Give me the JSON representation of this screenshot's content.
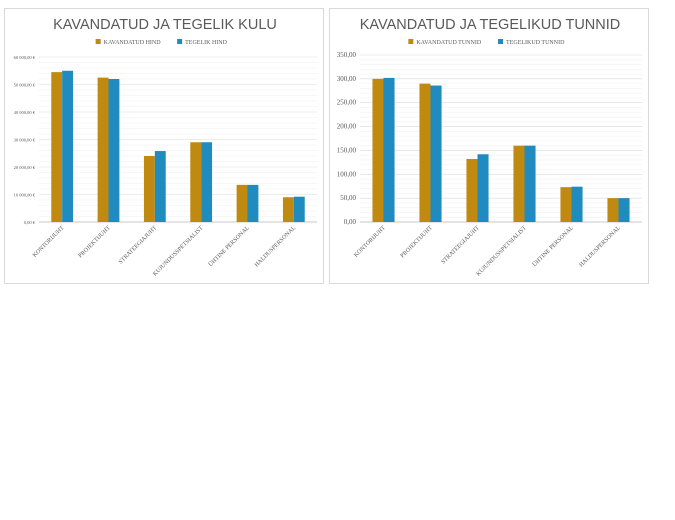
{
  "chart_data": [
    {
      "type": "bar",
      "title": "KAVANDATUD JA TEGELIK KULU",
      "xlabel": "",
      "ylabel": "",
      "categories": [
        "KONTORIJUHT",
        "PROJEKTIJUHT",
        "STRATEEGIAJUHT",
        "KUJUNDUSSPETSIALIST",
        "ÜHTINE PERSONAL",
        "HALDUSPERSONAL"
      ],
      "series": [
        {
          "name": "KAVANDATUD HIND",
          "color": "#c0890f",
          "values": [
            54500,
            52500,
            24000,
            29000,
            13500,
            9000
          ]
        },
        {
          "name": "TEGELIK HIND",
          "color": "#1f8bbf",
          "values": [
            55000,
            52000,
            25800,
            29000,
            13500,
            9200
          ]
        }
      ],
      "yticks": [
        "0,00 €",
        "10 000,00 €",
        "20 000,00 €",
        "30 000,00 €",
        "40 000,00 €",
        "50 000,00 €",
        "60 000,00 €"
      ],
      "ylim": [
        0,
        60000
      ],
      "legend": "top",
      "grid": true
    },
    {
      "type": "bar",
      "title": "KAVANDATUD JA TEGELIKUD TUNNID",
      "xlabel": "",
      "ylabel": "",
      "categories": [
        "KONTORIJUHT",
        "PROJEKTIJUHT",
        "STRATEEGIAJUHT",
        "KUJUNDUSSPETSIALIST",
        "ÜHTINE PERSONAL",
        "HALDUSPERSONAL"
      ],
      "series": [
        {
          "name": "KAVANDATUD TUNNID",
          "color": "#c0890f",
          "values": [
            300,
            290,
            132,
            160,
            73,
            50
          ]
        },
        {
          "name": "TEGELIKUD TUNNID",
          "color": "#1f8bbf",
          "values": [
            302,
            286,
            142,
            160,
            74,
            50
          ]
        }
      ],
      "yticks": [
        "0,00",
        "50,00",
        "100,00",
        "150,00",
        "200,00",
        "250,00",
        "300,00",
        "350,00"
      ],
      "ylim": [
        0,
        350
      ],
      "legend": "top",
      "grid": true
    }
  ]
}
